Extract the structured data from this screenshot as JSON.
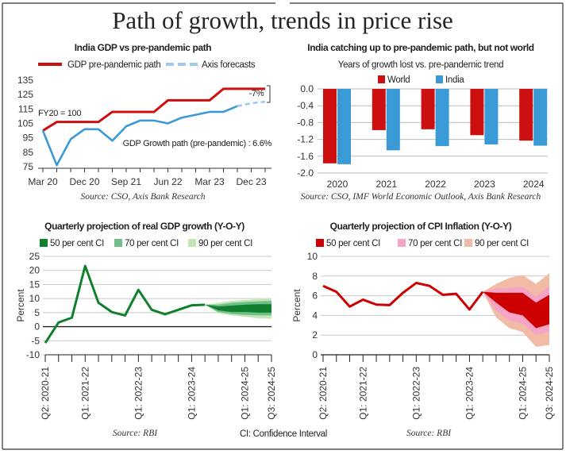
{
  "page_title": "Path of growth, trends in price rise",
  "footnote": "CI: Confidence Interval",
  "colors": {
    "red": "#cc1010",
    "blue": "#3a9ad6",
    "lightblue": "#9fcbe8",
    "green_50": "#10802e",
    "green_70": "#6fbf8a",
    "green_90": "#c4e6b4",
    "red_50": "#cc0000",
    "pink_70": "#f5a3c7",
    "peach_90": "#f2bba5"
  },
  "chart_data": [
    {
      "type": "line",
      "title": "India GDP vs pre-pandemic path",
      "legend": [
        "GDP pre-pandemic path",
        "Axis forecasts"
      ],
      "legend_placement": "top",
      "annotations": {
        "base": "FY20 = 100",
        "growth_path": "GDP Growth path (pre-pandemic) : 6.6%",
        "gap": "-7%"
      },
      "source": "Source: CSO, Axis Bank Research",
      "x": [
        "Mar 20",
        "Jun 20",
        "Sep 20",
        "Dec 20",
        "Mar 21",
        "Jun 21",
        "Sep 21",
        "Dec 21",
        "Mar 22",
        "Jun 22",
        "Sep 22",
        "Dec 22",
        "Mar 23",
        "Jun 23",
        "Sep 23",
        "Dec 23",
        "Mar 24"
      ],
      "x_tick_labels": [
        "Mar 20",
        "Dec 20",
        "Sep 21",
        "Jun 22",
        "Mar 23",
        "Dec 23"
      ],
      "y_ticks": [
        75,
        85,
        95,
        105,
        115,
        125,
        135
      ],
      "ylim": [
        75,
        135
      ],
      "series": [
        {
          "name": "GDP pre-pandemic path",
          "values": [
            100,
            106,
            106,
            106,
            106,
            113,
            113,
            113,
            113,
            121,
            121,
            121,
            121,
            129,
            129,
            129,
            129
          ]
        },
        {
          "values": [
            100,
            76,
            94,
            101,
            101,
            93,
            103,
            107,
            107,
            105,
            109,
            111,
            113,
            113,
            117,
            null,
            null
          ]
        },
        {
          "name": "Axis forecasts",
          "values": [
            null,
            null,
            null,
            null,
            null,
            null,
            null,
            null,
            null,
            null,
            null,
            null,
            null,
            null,
            117,
            119,
            120
          ]
        }
      ]
    },
    {
      "type": "bar",
      "title": "India catching up to pre-pandemic path, but not world",
      "subtitle": "Years of growth lost vs. pre-pandemic trend",
      "legend_placement": "top",
      "source": "Source: CSO, IMF World Economic Outlook, Axis Bank Research",
      "categories": [
        "2020",
        "2021",
        "2022",
        "2023",
        "2024"
      ],
      "y_ticks": [
        "0.0",
        "-0.4",
        "-0.8",
        "-1.2",
        "-1.6",
        "-2.0"
      ],
      "ylim": [
        -2.0,
        0.0
      ],
      "grid": true,
      "series": [
        {
          "name": "World",
          "values": [
            -1.77,
            -0.98,
            -0.96,
            -1.1,
            -1.23
          ]
        },
        {
          "name": "India",
          "values": [
            -1.79,
            -1.46,
            -1.36,
            -1.32,
            -1.35
          ]
        }
      ]
    },
    {
      "type": "area",
      "title": "Quarterly projection of real GDP growth (Y-O-Y)",
      "ylabel": "Percent",
      "legend": [
        "50 per cent CI",
        "70 per cent CI",
        "90 per cent CI"
      ],
      "legend_placement": "top",
      "source": "Source: RBI",
      "x_tick_labels": [
        "Q2: 2020-21",
        "Q1: 2021-22",
        "Q1: 2022-23",
        "Q1: 2023-24",
        "Q1: 2024-25",
        "Q3: 2024-25"
      ],
      "y_ticks": [
        "-10",
        "-5",
        "0",
        "5",
        "10",
        "15",
        "20",
        "25"
      ],
      "ylim": [
        -10,
        25
      ],
      "grid": true,
      "actual": [
        -5.8,
        1.5,
        3.2,
        21.6,
        8.5,
        5.2,
        4.0,
        13.1,
        6.0,
        4.4,
        6.0,
        7.6,
        7.8
      ],
      "bands": {
        "ci50": [
          [
            7.8,
            7.8
          ],
          [
            5.8,
            7.2
          ],
          [
            5.2,
            7.5
          ],
          [
            5.2,
            7.8
          ],
          [
            5.0,
            8.0
          ],
          [
            5.0,
            8.0
          ]
        ],
        "ci70": [
          [
            7.8,
            7.8
          ],
          [
            5.2,
            7.8
          ],
          [
            4.5,
            8.5
          ],
          [
            4.2,
            8.8
          ],
          [
            4.0,
            9.0
          ],
          [
            4.0,
            9.2
          ]
        ],
        "ci90": [
          [
            7.8,
            7.8
          ],
          [
            4.8,
            8.5
          ],
          [
            4.0,
            9.2
          ],
          [
            3.5,
            9.5
          ],
          [
            3.0,
            9.8
          ],
          [
            2.8,
            9.8
          ]
        ]
      }
    },
    {
      "type": "area",
      "title": "Quarterly projection of CPI Inflation (Y-O-Y)",
      "ylabel": "Percent",
      "legend": [
        "50 per cent CI",
        "70 per cent CI",
        "90 per cent CI"
      ],
      "legend_placement": "top",
      "source": "Source: RBI",
      "x_tick_labels": [
        "Q2: 2020-21",
        "Q1: 2021-22",
        "Q1: 2022-23",
        "Q1: 2023-24",
        "Q1: 2024-25",
        "Q3: 2024-25"
      ],
      "y_ticks": [
        "0",
        "2",
        "4",
        "6",
        "8",
        "10"
      ],
      "ylim": [
        0,
        10
      ],
      "grid": true,
      "actual": [
        7.0,
        6.4,
        4.9,
        5.6,
        5.1,
        5.05,
        6.3,
        7.3,
        7.0,
        6.1,
        6.2,
        4.6,
        6.4
      ],
      "bands": {
        "ci50": [
          [
            6.4,
            6.4
          ],
          [
            5.3,
            6.3
          ],
          [
            4.3,
            6.3
          ],
          [
            4.0,
            6.3
          ],
          [
            2.7,
            5.3
          ],
          [
            3.1,
            6.1
          ]
        ],
        "ci70": [
          [
            6.4,
            6.4
          ],
          [
            4.5,
            6.7
          ],
          [
            3.5,
            6.8
          ],
          [
            3.2,
            6.9
          ],
          [
            2.0,
            5.9
          ],
          [
            2.4,
            7.0
          ]
        ],
        "ci90": [
          [
            6.4,
            6.4
          ],
          [
            3.8,
            7.2
          ],
          [
            2.7,
            7.8
          ],
          [
            2.3,
            8.1
          ],
          [
            0.8,
            7.2
          ],
          [
            1.0,
            8.3
          ]
        ]
      }
    }
  ]
}
